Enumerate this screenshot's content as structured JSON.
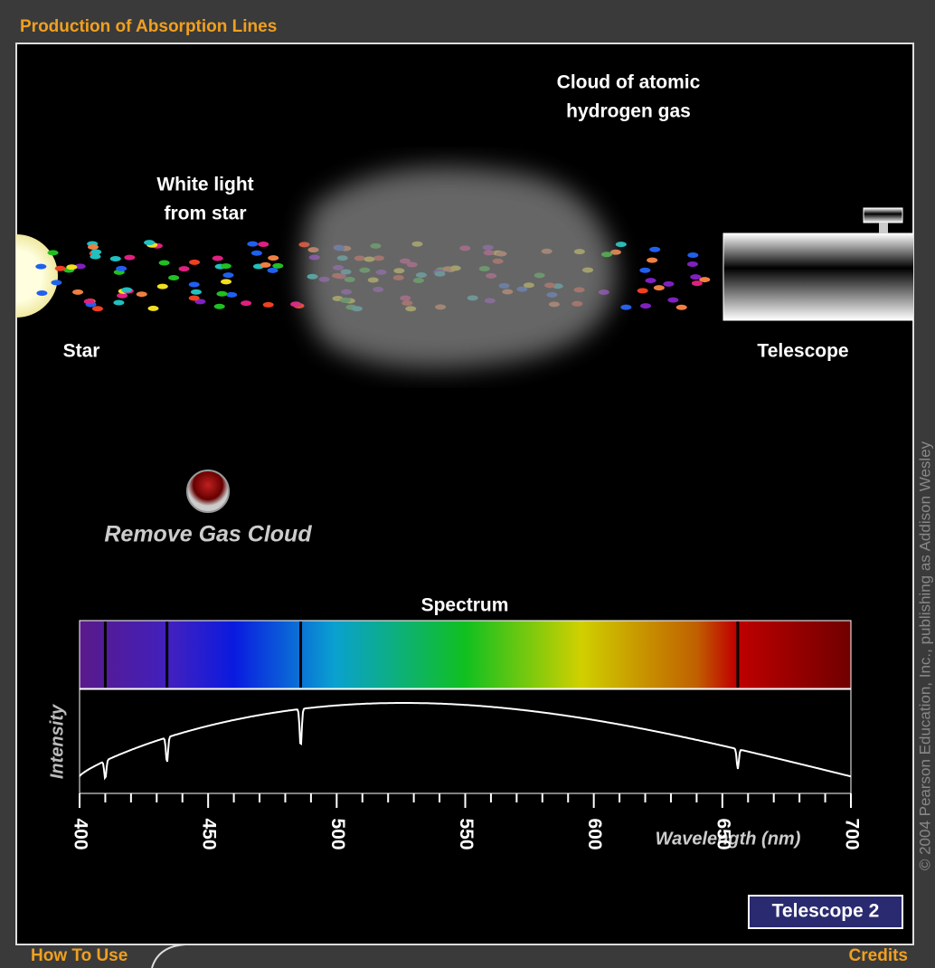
{
  "header": {
    "title": "Production of Absorption Lines"
  },
  "scene": {
    "cloud_label": [
      "Cloud of atomic",
      "hydrogen gas"
    ],
    "light_label": [
      "White light",
      "from star"
    ],
    "star_label": "Star",
    "telescope_label": "Telescope"
  },
  "controls": {
    "remove_button": "Remove Gas Cloud",
    "telescope_button": "Telescope 2"
  },
  "spectrum": {
    "title": "Spectrum",
    "y_label": "Intensity",
    "x_label": "Wavelength (nm)",
    "xlim": [
      400,
      700
    ],
    "xticks": [
      400,
      450,
      500,
      550,
      600,
      650,
      700
    ],
    "xminorticks": [
      410,
      420,
      430,
      440,
      460,
      470,
      480,
      490,
      510,
      520,
      530,
      540,
      560,
      570,
      580,
      590,
      610,
      620,
      630,
      640,
      660,
      670,
      680,
      690
    ],
    "absorption_lines": [
      410,
      434,
      486,
      656
    ]
  },
  "footer": {
    "left": "How To Use",
    "right": "Credits",
    "copyright": "© 2004 Pearson Education, Inc., publishing as Addison Wesley"
  }
}
